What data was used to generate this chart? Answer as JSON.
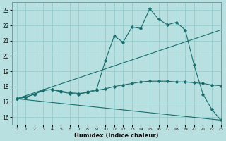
{
  "xlabel": "Humidex (Indice chaleur)",
  "background_color": "#b8e0e0",
  "grid_color": "#90c8c8",
  "line_color": "#1a6e6e",
  "xlim": [
    -0.5,
    23
  ],
  "ylim": [
    15.5,
    23.5
  ],
  "xticks": [
    0,
    1,
    2,
    3,
    4,
    5,
    6,
    7,
    8,
    9,
    10,
    11,
    12,
    13,
    14,
    15,
    16,
    17,
    18,
    19,
    20,
    21,
    22,
    23
  ],
  "yticks": [
    16,
    17,
    18,
    19,
    20,
    21,
    22,
    23
  ],
  "series": [
    {
      "x": [
        0,
        1,
        2,
        3,
        4,
        5,
        6,
        7,
        8,
        9,
        10,
        11,
        12,
        13,
        14,
        15,
        16,
        17,
        18,
        19,
        20,
        21,
        22,
        23
      ],
      "y": [
        17.2,
        17.3,
        17.5,
        17.75,
        17.8,
        17.65,
        17.55,
        17.5,
        17.65,
        17.8,
        19.7,
        21.3,
        20.9,
        21.9,
        21.8,
        23.1,
        22.4,
        22.05,
        22.2,
        21.7,
        19.4,
        17.5,
        16.5,
        15.8
      ]
    },
    {
      "x": [
        0,
        23
      ],
      "y": [
        17.2,
        21.7
      ]
    },
    {
      "x": [
        0,
        1,
        2,
        3,
        4,
        5,
        6,
        7,
        8,
        9,
        10,
        11,
        12,
        13,
        14,
        15,
        16,
        17,
        18,
        19,
        20,
        21,
        22,
        23
      ],
      "y": [
        17.2,
        17.3,
        17.5,
        17.75,
        17.8,
        17.7,
        17.6,
        17.55,
        17.6,
        17.75,
        17.85,
        18.0,
        18.1,
        18.2,
        18.3,
        18.35,
        18.35,
        18.35,
        18.3,
        18.3,
        18.25,
        18.2,
        18.1,
        18.05
      ]
    },
    {
      "x": [
        0,
        23
      ],
      "y": [
        17.2,
        15.8
      ]
    }
  ]
}
